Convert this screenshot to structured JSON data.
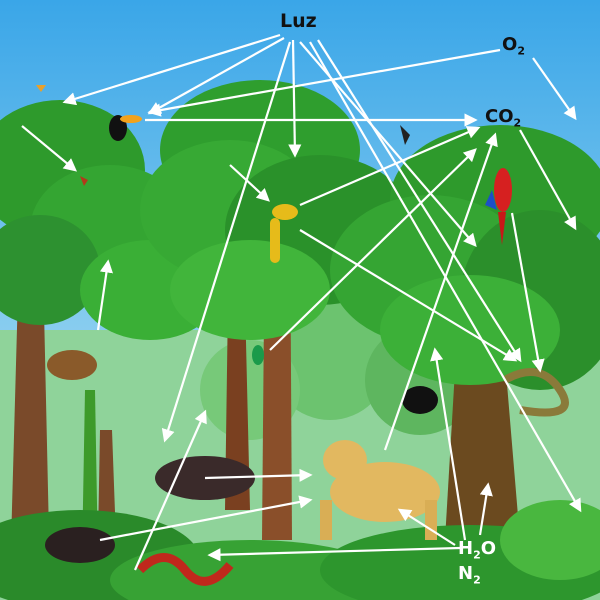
{
  "labels": {
    "light": "Luz",
    "oxygen": "O",
    "oxygen_sub": "2",
    "carbon_dioxide": "CO",
    "carbon_dioxide_sub": "2",
    "water": "H",
    "water_sub": "2",
    "water_suffix": "O",
    "nitrogen": "N",
    "nitrogen_sub": "2"
  },
  "colors": {
    "sky_top": "#3aa6e8",
    "sky_bottom": "#bfe6f7",
    "canopy": "#2e9a2c",
    "canopy_light": "#49bd3a",
    "trunk": "#7a4a2a",
    "arrow": "#ffffff"
  }
}
